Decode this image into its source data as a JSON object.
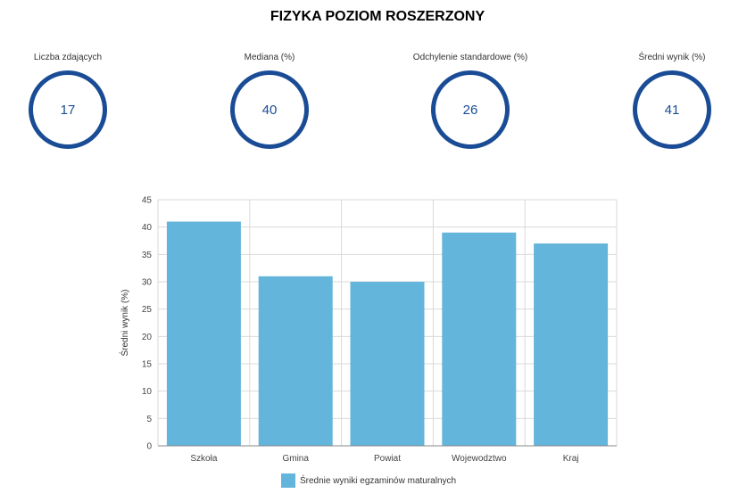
{
  "title": "FIZYKA POZIOM ROSZERZONY",
  "stats": [
    {
      "label": "Liczba zdających",
      "value": "17"
    },
    {
      "label": "Mediana (%)",
      "value": "40"
    },
    {
      "label": "Odchylenie standardowe (%)",
      "value": "26"
    },
    {
      "label": "Średni wynik (%)",
      "value": "41"
    }
  ],
  "colors": {
    "ring": "#1a4c96",
    "bar": "#64b5dc"
  },
  "chart_data": {
    "type": "bar",
    "categories": [
      "Szkoła",
      "Gmina",
      "Powiat",
      "Wojewodztwo",
      "Kraj"
    ],
    "series": [
      {
        "name": "Średnie wyniki egzaminów maturalnych",
        "values": [
          41,
          31,
          30,
          39,
          37
        ]
      }
    ],
    "ylabel": "Średni wynik (%)",
    "xlabel": "",
    "ylim": [
      0,
      45
    ],
    "yticks": [
      "0",
      "5",
      "10",
      "15",
      "20",
      "25",
      "30",
      "35",
      "40",
      "45"
    ],
    "grid": true,
    "legend": "bottom"
  }
}
